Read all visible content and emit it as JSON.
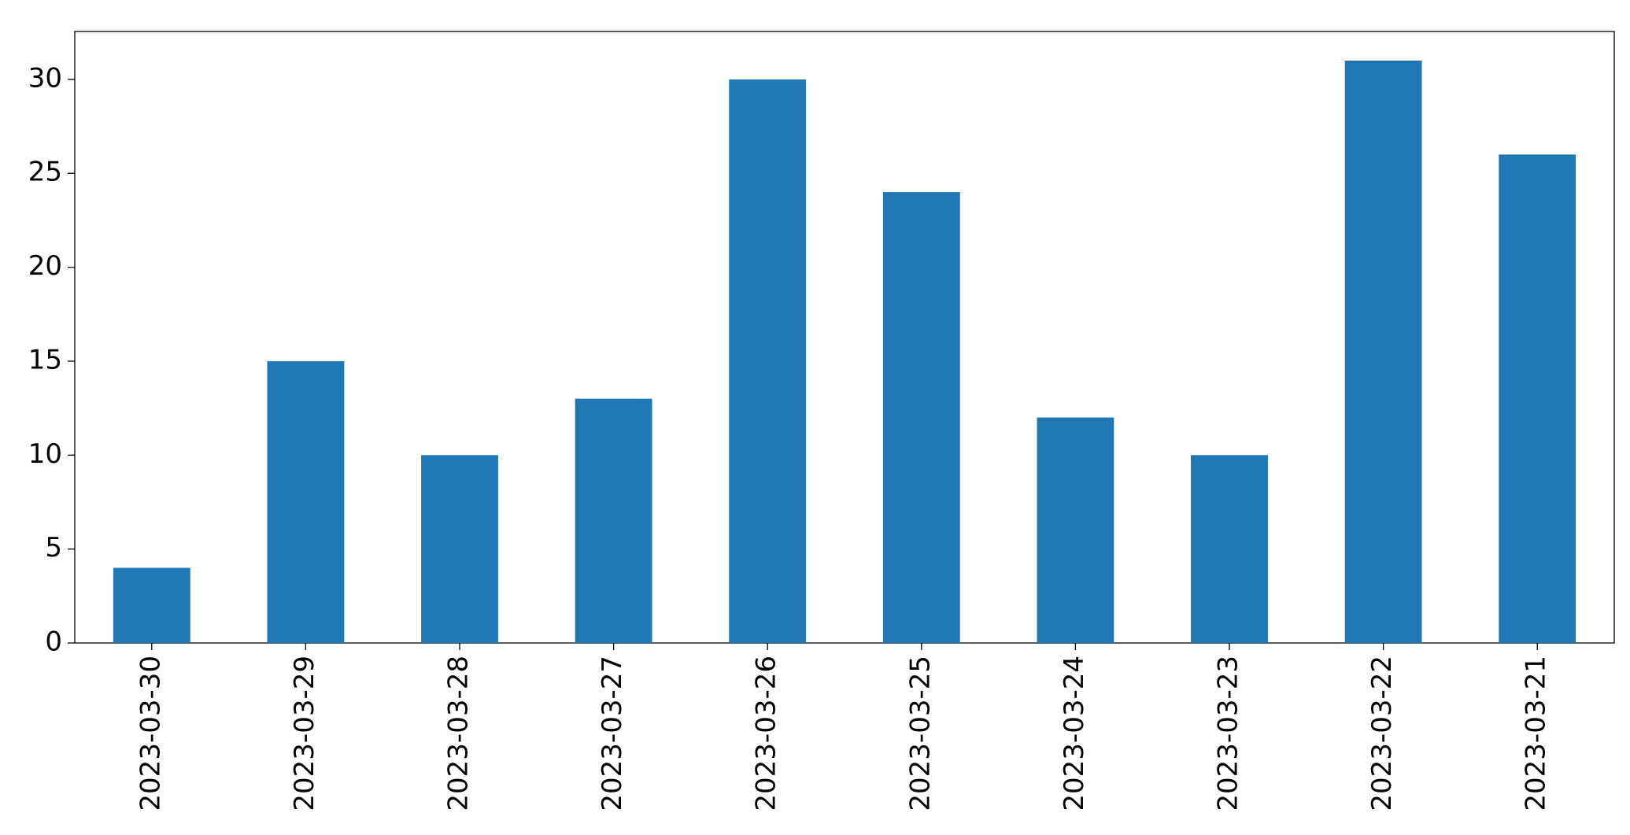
{
  "chart_data": {
    "type": "bar",
    "categories": [
      "2023-03-30",
      "2023-03-29",
      "2023-03-28",
      "2023-03-27",
      "2023-03-26",
      "2023-03-25",
      "2023-03-24",
      "2023-03-23",
      "2023-03-22",
      "2023-03-21"
    ],
    "values": [
      4,
      15,
      10,
      13,
      30,
      24,
      12,
      10,
      31,
      26
    ],
    "color": "#1f77b4",
    "ylim": [
      0,
      32.55
    ],
    "yticks": [
      0,
      5,
      10,
      15,
      20,
      25,
      30
    ],
    "grid": false
  }
}
